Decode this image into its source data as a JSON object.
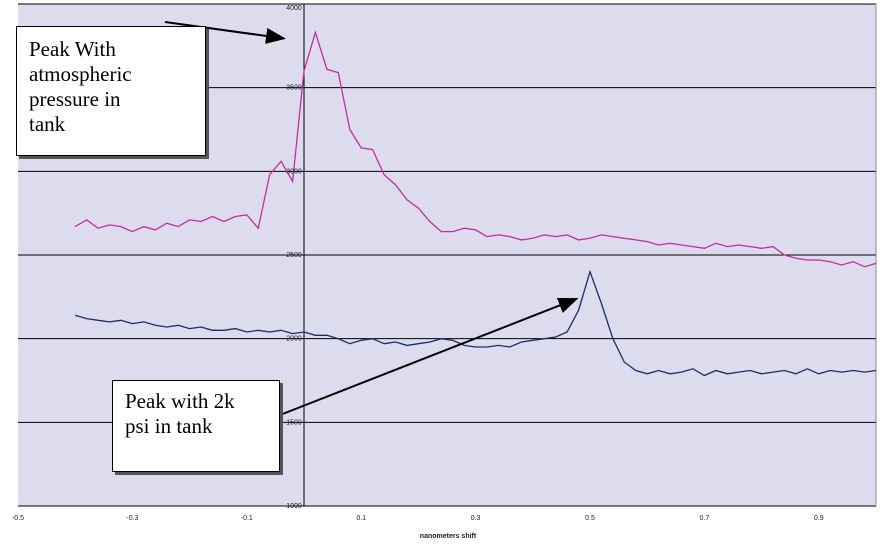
{
  "chart_data": {
    "type": "line",
    "title": "",
    "xlabel": "nanometers shift",
    "ylabel": "",
    "xlim": [
      -0.5,
      1.0
    ],
    "ylim": [
      1000,
      4000
    ],
    "x_ticks": [
      "-0.5",
      "-0.3",
      "-0.1",
      "0.1",
      "0.3",
      "0.5",
      "0.7",
      "0.9"
    ],
    "y_ticks": [
      "1000",
      "1500",
      "2000",
      "2500",
      "3000",
      "3500",
      "4000"
    ],
    "grid": "horizontal",
    "plot_background": "#dcdcee",
    "series": [
      {
        "color": "#c0309a",
        "x": [
          -0.4,
          -0.38,
          -0.36,
          -0.34,
          -0.32,
          -0.3,
          -0.28,
          -0.26,
          -0.24,
          -0.22,
          -0.2,
          -0.18,
          -0.16,
          -0.14,
          -0.12,
          -0.1,
          -0.08,
          -0.06,
          -0.04,
          -0.02,
          0,
          0.02,
          0.04,
          0.06,
          0.08,
          0.1,
          0.12,
          0.14,
          0.16,
          0.18,
          0.2,
          0.22,
          0.24,
          0.26,
          0.28,
          0.3,
          0.32,
          0.34,
          0.36,
          0.38,
          0.4,
          0.42,
          0.44,
          0.46,
          0.48,
          0.5,
          0.52,
          0.54,
          0.56,
          0.58,
          0.6,
          0.62,
          0.64,
          0.66,
          0.68,
          0.7,
          0.72,
          0.74,
          0.76,
          0.78,
          0.8,
          0.82,
          0.84,
          0.86,
          0.88,
          0.9,
          0.92,
          0.94,
          0.96,
          0.98,
          1.0
        ],
        "values": [
          2670,
          2710,
          2660,
          2680,
          2670,
          2640,
          2670,
          2650,
          2690,
          2670,
          2710,
          2700,
          2730,
          2700,
          2730,
          2740,
          2660,
          2980,
          3060,
          2940,
          3600,
          3830,
          3610,
          3590,
          3250,
          3140,
          3130,
          2980,
          2920,
          2830,
          2780,
          2700,
          2640,
          2640,
          2660,
          2650,
          2610,
          2620,
          2610,
          2590,
          2600,
          2620,
          2610,
          2620,
          2590,
          2600,
          2620,
          2610,
          2600,
          2590,
          2580,
          2560,
          2570,
          2560,
          2550,
          2540,
          2570,
          2550,
          2560,
          2550,
          2540,
          2550,
          2500,
          2480,
          2470,
          2470,
          2460,
          2440,
          2460,
          2430,
          2450
        ]
      },
      {
        "color": "#1c2c66",
        "x": [
          -0.4,
          -0.38,
          -0.36,
          -0.34,
          -0.32,
          -0.3,
          -0.28,
          -0.26,
          -0.24,
          -0.22,
          -0.2,
          -0.18,
          -0.16,
          -0.14,
          -0.12,
          -0.1,
          -0.08,
          -0.06,
          -0.04,
          -0.02,
          0,
          0.02,
          0.04,
          0.06,
          0.08,
          0.1,
          0.12,
          0.14,
          0.16,
          0.18,
          0.2,
          0.22,
          0.24,
          0.26,
          0.28,
          0.3,
          0.32,
          0.34,
          0.36,
          0.38,
          0.4,
          0.42,
          0.44,
          0.46,
          0.48,
          0.5,
          0.52,
          0.54,
          0.56,
          0.58,
          0.6,
          0.62,
          0.64,
          0.66,
          0.68,
          0.7,
          0.72,
          0.74,
          0.76,
          0.78,
          0.8,
          0.82,
          0.84,
          0.86,
          0.88,
          0.9,
          0.92,
          0.94,
          0.96,
          0.98,
          1.0
        ],
        "values": [
          2140,
          2120,
          2110,
          2100,
          2110,
          2090,
          2100,
          2080,
          2070,
          2080,
          2060,
          2070,
          2050,
          2050,
          2060,
          2040,
          2050,
          2040,
          2050,
          2030,
          2040,
          2020,
          2020,
          2000,
          1970,
          1990,
          2000,
          1970,
          1980,
          1960,
          1970,
          1980,
          2000,
          1990,
          1960,
          1950,
          1950,
          1960,
          1950,
          1980,
          1990,
          2000,
          2010,
          2040,
          2170,
          2400,
          2210,
          2000,
          1860,
          1810,
          1790,
          1810,
          1790,
          1800,
          1820,
          1780,
          1810,
          1790,
          1800,
          1810,
          1790,
          1800,
          1810,
          1790,
          1820,
          1790,
          1810,
          1800,
          1810,
          1800,
          1810
        ]
      }
    ],
    "annotations": [
      {
        "text": "Peak With atmospheric pressure in tank",
        "target_x": 0.0,
        "target_y": 3830
      },
      {
        "text": "Peak with 2k psi in tank",
        "target_x": 0.48,
        "target_y": 2250
      }
    ]
  },
  "notes": {
    "note1": [
      "Peak With",
      "atmospheric",
      "pressure in",
      "tank"
    ],
    "note2": [
      "Peak with 2k",
      "psi in tank"
    ]
  }
}
